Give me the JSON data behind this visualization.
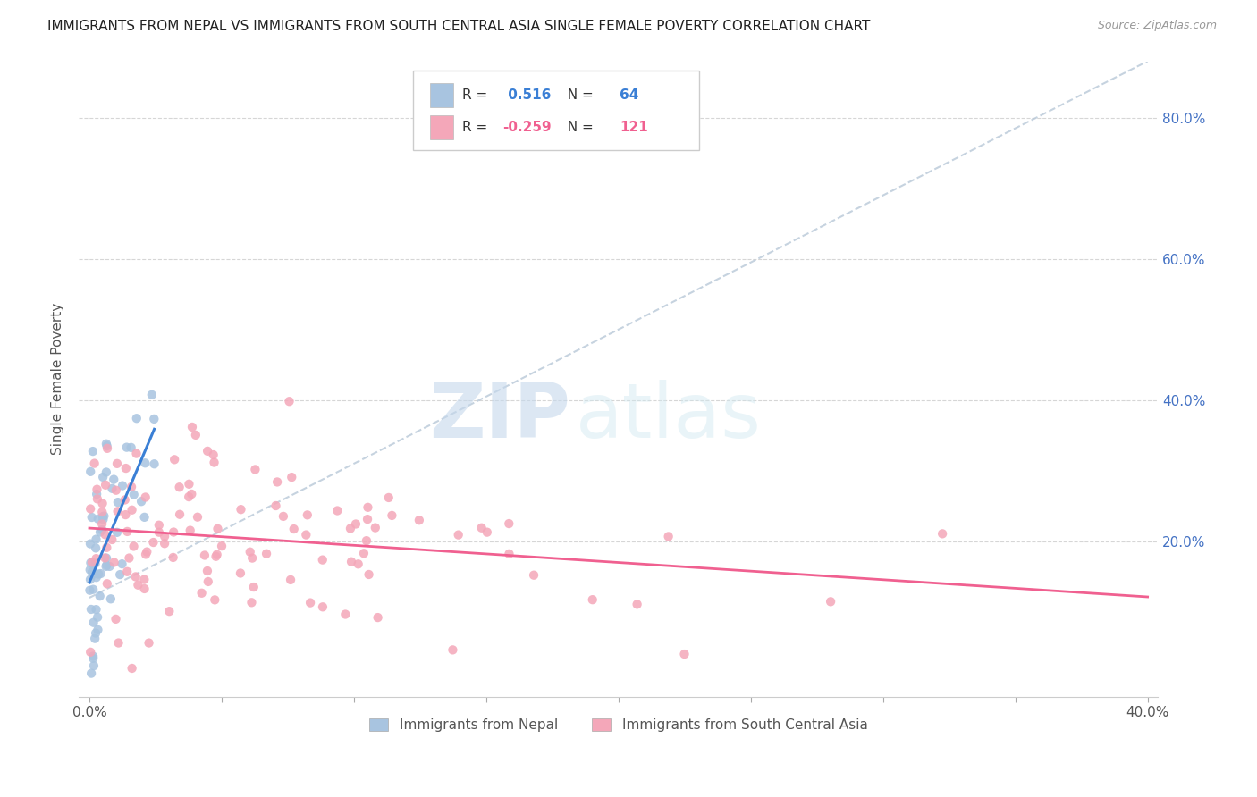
{
  "title": "IMMIGRANTS FROM NEPAL VS IMMIGRANTS FROM SOUTH CENTRAL ASIA SINGLE FEMALE POVERTY CORRELATION CHART",
  "source": "Source: ZipAtlas.com",
  "ylabel": "Single Female Poverty",
  "legend_label_1": "Immigrants from Nepal",
  "legend_label_2": "Immigrants from South Central Asia",
  "R1": 0.516,
  "N1": 64,
  "R2": -0.259,
  "N2": 121,
  "color_nepal": "#a8c4e0",
  "color_sca": "#f4a7b9",
  "color_line_nepal": "#3a7fd5",
  "color_line_sca": "#f06090",
  "color_diag": "#b8c8d8",
  "background_color": "#ffffff",
  "watermark_zip": "ZIP",
  "watermark_atlas": "atlas",
  "x_min": 0.0,
  "x_max": 0.4,
  "y_min": 0.0,
  "y_max": 0.88,
  "y_ticks": [
    0.2,
    0.4,
    0.6,
    0.8
  ],
  "y_tick_labels": [
    "20.0%",
    "40.0%",
    "60.0%",
    "80.0%"
  ],
  "x_tick_labels_show": [
    "0.0%",
    "40.0%"
  ],
  "nepal_seed": 42,
  "sca_seed": 99
}
